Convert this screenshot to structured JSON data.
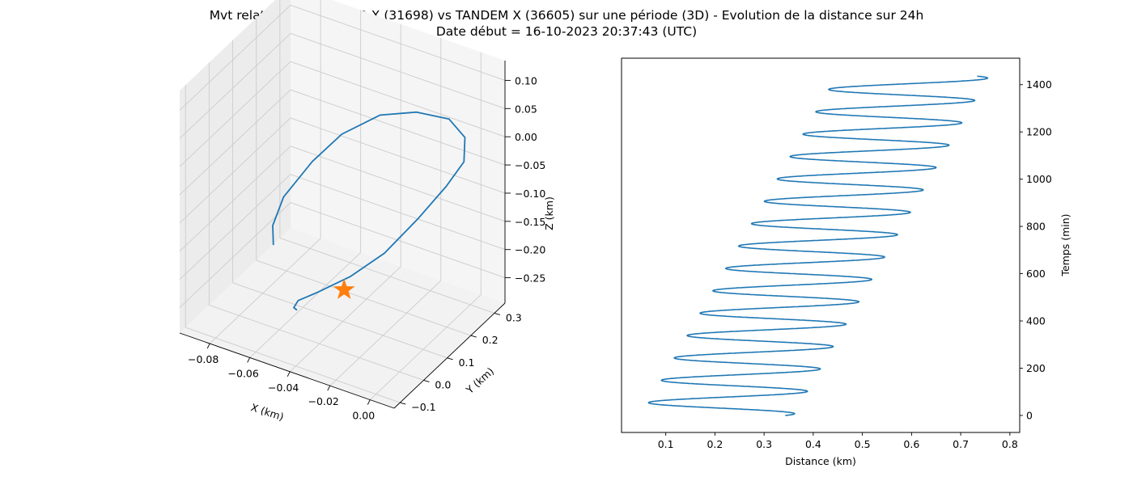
{
  "figure": {
    "title_line1": "Mvt relatif de TERRA SAR X (31698) vs TANDEM X (36605) sur une période (3D) - Evolution de la distance sur 24h",
    "title_line2": "Date début = 16-10-2023 20:37:43 (UTC)"
  },
  "colors": {
    "series": "#1f77b4",
    "marker": "#ff7f0e",
    "pane": "#f2f2f2",
    "grid": "#cccccc"
  },
  "chart_data": [
    {
      "type": "line",
      "projection": "3d",
      "title": "",
      "xlabel": "X (km)",
      "ylabel": "Y (km)",
      "zlabel": "Z (km)",
      "x_ticks": [
        "−0.08",
        "−0.06",
        "−0.04",
        "−0.02",
        "0.00"
      ],
      "y_ticks": [
        "−0.1",
        "0.0",
        "0.1",
        "0.2",
        "0.3"
      ],
      "z_ticks": [
        "0.10",
        "0.05",
        "0.00",
        "−0.05",
        "−0.10",
        "−0.15",
        "−0.20",
        "−0.25"
      ],
      "grid": true,
      "series": [
        {
          "points": [
            [
              -0.06,
              -0.025,
              -0.135
            ],
            [
              -0.058,
              -0.045,
              -0.09
            ],
            [
              -0.052,
              -0.05,
              -0.03
            ],
            [
              -0.04,
              -0.03,
              0.04
            ],
            [
              -0.03,
              0.01,
              0.085
            ],
            [
              -0.018,
              0.07,
              0.11
            ],
            [
              -0.008,
              0.14,
              0.1
            ],
            [
              0.0,
              0.21,
              0.07
            ],
            [
              0.002,
              0.26,
              0.02
            ],
            [
              -0.002,
              0.29,
              -0.04
            ],
            [
              -0.012,
              0.3,
              -0.1
            ],
            [
              -0.025,
              0.29,
              -0.17
            ],
            [
              -0.037,
              0.25,
              -0.23
            ],
            [
              -0.047,
              0.19,
              -0.26
            ],
            [
              -0.055,
              0.12,
              -0.27
            ],
            [
              -0.06,
              0.08,
              -0.275
            ],
            [
              -0.061,
              0.07,
              -0.285
            ],
            [
              -0.06,
              0.075,
              -0.29
            ]
          ]
        }
      ],
      "marker": {
        "shape": "star",
        "point": [
          -0.03,
          0.02,
          -0.195
        ]
      }
    },
    {
      "type": "line",
      "title": "",
      "xlabel": "Distance (km)",
      "ylabel": "Temps (min)",
      "xlim": [
        0.01,
        0.82
      ],
      "ylim": [
        -72,
        1512
      ],
      "x_ticks": [
        0.1,
        0.2,
        0.3,
        0.4,
        0.5,
        0.6,
        0.7,
        0.8
      ],
      "y_ticks": [
        0,
        200,
        400,
        600,
        800,
        1000,
        1200,
        1400
      ],
      "x_tick_labels": [
        "0.1",
        "0.2",
        "0.3",
        "0.4",
        "0.5",
        "0.6",
        "0.7",
        "0.8"
      ],
      "y_tick_labels": [
        "0",
        "200",
        "400",
        "600",
        "800",
        "1000",
        "1200",
        "1400"
      ],
      "grid": false,
      "series": [
        {
          "period_min": 94.7,
          "amplitude_km": 0.155,
          "center_start_km": 0.205,
          "center_end_km": 0.602,
          "t_start_min": 0,
          "t_end_min": 1436,
          "phase_start_rad": 1.1
        }
      ]
    }
  ]
}
